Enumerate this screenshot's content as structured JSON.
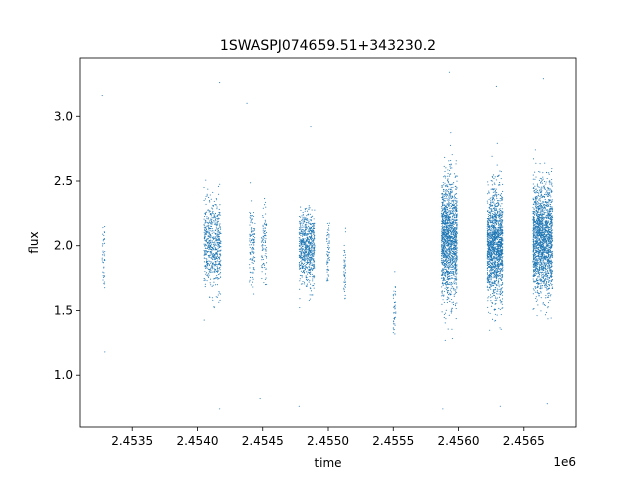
{
  "chart_data": {
    "type": "scatter",
    "title": "1SWASPJ074659.51+343230.2",
    "xlabel": "time",
    "ylabel": "flux",
    "x_offset_label": "1e6",
    "xlim": [
      2453100,
      2456900
    ],
    "ylim": [
      0.6,
      3.45
    ],
    "x_ticks": [
      2453500,
      2454000,
      2454500,
      2455000,
      2455500,
      2456000,
      2456500
    ],
    "x_tick_labels": [
      "2.4535",
      "2.4540",
      "2.4545",
      "2.4550",
      "2.4555",
      "2.4560",
      "2.4565"
    ],
    "y_ticks": [
      1.0,
      1.5,
      2.0,
      2.5,
      3.0
    ],
    "y_tick_labels": [
      "1.0",
      "1.5",
      "2.0",
      "2.5",
      "3.0"
    ],
    "grid": false,
    "marker_color": "#1f77b4",
    "clusters": [
      {
        "x_start": 2453270,
        "x_end": 2453290,
        "center": 1.95,
        "spread": 0.28,
        "n": 40
      },
      {
        "x_start": 2454050,
        "x_end": 2454180,
        "center": 2.0,
        "spread": 0.3,
        "n": 600
      },
      {
        "x_start": 2454400,
        "x_end": 2454440,
        "center": 2.0,
        "spread": 0.28,
        "n": 110
      },
      {
        "x_start": 2454490,
        "x_end": 2454530,
        "center": 2.0,
        "spread": 0.26,
        "n": 90
      },
      {
        "x_start": 2454780,
        "x_end": 2454900,
        "center": 1.98,
        "spread": 0.25,
        "n": 700
      },
      {
        "x_start": 2454990,
        "x_end": 2455010,
        "center": 1.9,
        "spread": 0.25,
        "n": 60
      },
      {
        "x_start": 2455120,
        "x_end": 2455135,
        "center": 1.85,
        "spread": 0.2,
        "n": 45
      },
      {
        "x_start": 2455500,
        "x_end": 2455520,
        "center": 1.5,
        "spread": 0.2,
        "n": 40
      },
      {
        "x_start": 2455870,
        "x_end": 2455990,
        "center": 2.05,
        "spread": 0.42,
        "n": 1500
      },
      {
        "x_start": 2456220,
        "x_end": 2456340,
        "center": 2.0,
        "spread": 0.38,
        "n": 1500
      },
      {
        "x_start": 2456570,
        "x_end": 2456720,
        "center": 2.05,
        "spread": 0.38,
        "n": 1800
      }
    ],
    "outliers": [
      {
        "x": 2453270,
        "y": 3.16
      },
      {
        "x": 2453290,
        "y": 1.18
      },
      {
        "x": 2454170,
        "y": 3.26
      },
      {
        "x": 2454170,
        "y": 0.74
      },
      {
        "x": 2454380,
        "y": 3.1
      },
      {
        "x": 2454480,
        "y": 0.82
      },
      {
        "x": 2454870,
        "y": 2.92
      },
      {
        "x": 2454780,
        "y": 0.76
      },
      {
        "x": 2455930,
        "y": 3.34
      },
      {
        "x": 2455880,
        "y": 0.74
      },
      {
        "x": 2456290,
        "y": 3.23
      },
      {
        "x": 2456320,
        "y": 0.76
      },
      {
        "x": 2456650,
        "y": 3.29
      },
      {
        "x": 2456680,
        "y": 0.78
      }
    ]
  }
}
